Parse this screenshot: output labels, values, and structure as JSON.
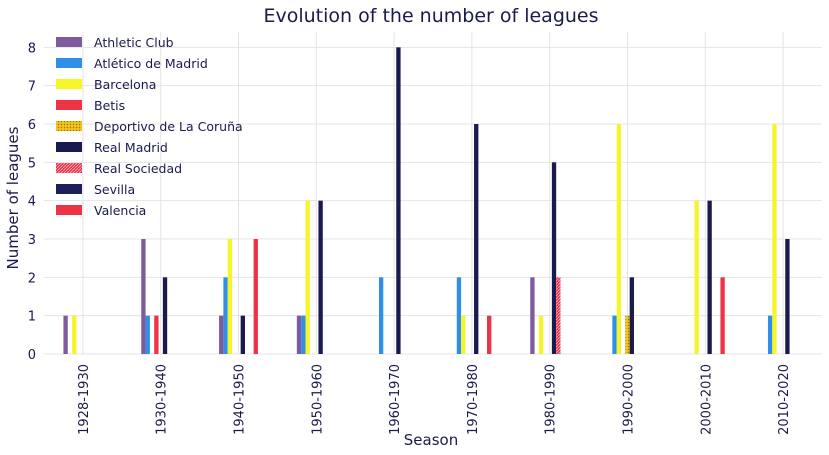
{
  "chart_data": {
    "type": "bar",
    "title": "Evolution of the number of leagues",
    "xlabel": "Season",
    "ylabel": "Number of leagues",
    "ylim": [
      0,
      8.4
    ],
    "yticks": [
      0,
      1,
      2,
      3,
      4,
      5,
      6,
      7,
      8
    ],
    "grid": true,
    "legend_position": "top-left",
    "categories": [
      "1928-1930",
      "1930-1940",
      "1940-1950",
      "1950-1960",
      "1960-1970",
      "1970-1980",
      "1980-1990",
      "1990-2000",
      "2000-2010",
      "2010-2020"
    ],
    "series": [
      {
        "name": "Athletic Club",
        "color": "#7d5b9e",
        "pattern": "solid",
        "values": [
          1,
          3,
          1,
          1,
          0,
          0,
          2,
          0,
          0,
          0
        ]
      },
      {
        "name": "Atlético de Madrid",
        "color": "#2f8ee8",
        "pattern": "solid",
        "values": [
          0,
          1,
          2,
          1,
          2,
          2,
          0,
          1,
          0,
          1
        ]
      },
      {
        "name": "Barcelona",
        "color": "#f5f52a",
        "pattern": "solid",
        "values": [
          1,
          0,
          3,
          4,
          0,
          1,
          1,
          6,
          4,
          6
        ]
      },
      {
        "name": "Betis",
        "color": "#ee3344",
        "pattern": "solid",
        "values": [
          0,
          1,
          0,
          0,
          0,
          0,
          0,
          0,
          0,
          0
        ]
      },
      {
        "name": "Deportivo de La Coruña",
        "color": "#f0c419",
        "pattern": "dots",
        "values": [
          0,
          0,
          0,
          0,
          0,
          0,
          0,
          1,
          0,
          0
        ]
      },
      {
        "name": "Real Madrid",
        "color": "#1a1a4e",
        "pattern": "solid",
        "values": [
          0,
          2,
          1,
          4,
          8,
          6,
          5,
          2,
          4,
          3
        ]
      },
      {
        "name": "Real Sociedad",
        "color": "#e8334a",
        "pattern": "hatch",
        "values": [
          0,
          0,
          0,
          0,
          0,
          0,
          2,
          0,
          0,
          0
        ]
      },
      {
        "name": "Sevilla",
        "color": "#1c1f5c",
        "pattern": "solid",
        "values": [
          0,
          0,
          0,
          0,
          0,
          0,
          0,
          0,
          0,
          0
        ]
      },
      {
        "name": "Valencia",
        "color": "#ef3347",
        "pattern": "solid",
        "values": [
          0,
          0,
          3,
          0,
          0,
          1,
          0,
          0,
          2,
          0
        ]
      }
    ]
  }
}
